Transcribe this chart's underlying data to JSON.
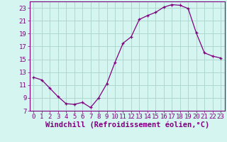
{
  "x": [
    0,
    1,
    2,
    3,
    4,
    5,
    6,
    7,
    8,
    9,
    10,
    11,
    12,
    13,
    14,
    15,
    16,
    17,
    18,
    19,
    20,
    21,
    22,
    23
  ],
  "y": [
    12.2,
    11.8,
    10.5,
    9.2,
    8.1,
    8.0,
    8.3,
    7.5,
    9.0,
    11.2,
    14.5,
    17.5,
    18.5,
    21.2,
    21.8,
    22.3,
    23.1,
    23.5,
    23.4,
    22.9,
    19.1,
    16.0,
    15.5,
    15.2
  ],
  "line_color": "#800080",
  "marker": "+",
  "bg_color": "#d4f5f0",
  "grid_color": "#b0d8d0",
  "xlabel": "Windchill (Refroidissement éolien,°C)",
  "xlim": [
    -0.5,
    23.5
  ],
  "ylim": [
    7,
    24
  ],
  "yticks": [
    7,
    9,
    11,
    13,
    15,
    17,
    19,
    21,
    23
  ],
  "xticks": [
    0,
    1,
    2,
    3,
    4,
    5,
    6,
    7,
    8,
    9,
    10,
    11,
    12,
    13,
    14,
    15,
    16,
    17,
    18,
    19,
    20,
    21,
    22,
    23
  ],
  "tick_color": "#800080",
  "label_color": "#800080",
  "axis_color": "#800080",
  "font_size": 6.5,
  "xlabel_fontsize": 7.5
}
